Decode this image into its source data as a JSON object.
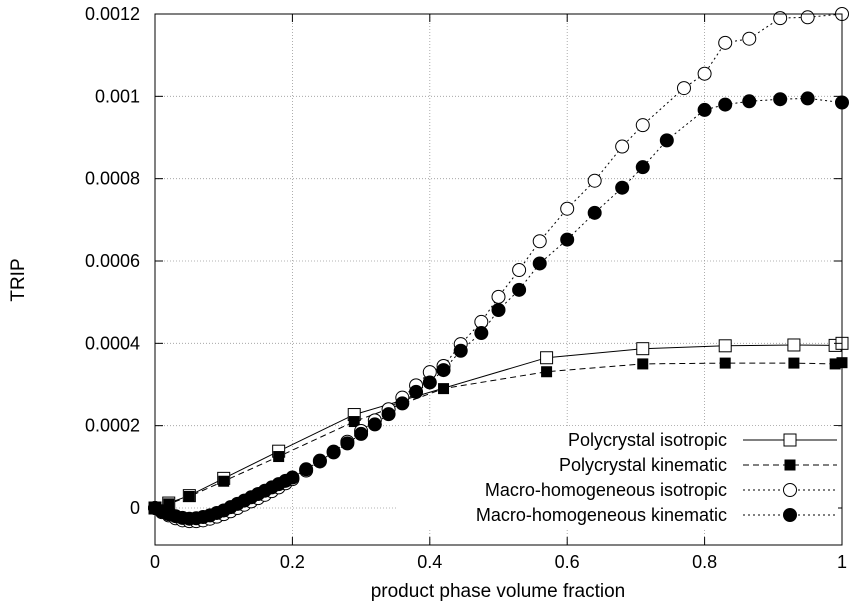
{
  "chart_data": {
    "type": "line",
    "title": "",
    "xlabel": "product phase volume fraction",
    "ylabel": "TRIP",
    "xlim": [
      0,
      1
    ],
    "ylim": [
      -6e-05,
      0.0012
    ],
    "xticks": [
      0,
      0.2,
      0.4,
      0.6,
      0.8,
      1
    ],
    "xtick_labels": [
      "0",
      "0.2",
      "0.4",
      "0.6",
      "0.8",
      "1"
    ],
    "yticks": [
      0,
      0.0002,
      0.0004,
      0.0006,
      0.0008,
      0.001,
      0.0012
    ],
    "ytick_labels": [
      "0",
      "0.0002",
      "0.0004",
      "0.0006",
      "0.0008",
      "0.001",
      "0.0012"
    ],
    "grid": true,
    "legend_position": "bottom-right",
    "series": [
      {
        "name": "Polycrystal isotropic",
        "line_style": "solid",
        "marker": "open-square",
        "x": [
          0,
          0.02,
          0.05,
          0.1,
          0.18,
          0.29,
          0.57,
          0.71,
          0.83,
          0.93,
          0.99,
          1.0
        ],
        "y": [
          0.0,
          1.2e-05,
          3e-05,
          7.2e-05,
          0.000138,
          0.000227,
          0.000365,
          0.000387,
          0.000394,
          0.000396,
          0.000395,
          0.0004
        ]
      },
      {
        "name": "Polycrystal kinematic",
        "line_style": "dashed",
        "marker": "filled-square",
        "x": [
          0,
          0.02,
          0.05,
          0.1,
          0.18,
          0.29,
          0.42,
          0.57,
          0.71,
          0.83,
          0.93,
          0.99,
          1.0
        ],
        "y": [
          0.0,
          1e-05,
          2.8e-05,
          6.5e-05,
          0.000125,
          0.00021,
          0.00029,
          0.000331,
          0.00035,
          0.000352,
          0.000352,
          0.00035,
          0.000353
        ]
      },
      {
        "name": "Macro-homogeneous isotropic",
        "line_style": "dotted",
        "marker": "open-circle",
        "x": [
          0,
          0.01,
          0.02,
          0.03,
          0.04,
          0.05,
          0.06,
          0.07,
          0.08,
          0.09,
          0.1,
          0.11,
          0.12,
          0.13,
          0.14,
          0.15,
          0.16,
          0.17,
          0.18,
          0.19,
          0.2,
          0.22,
          0.24,
          0.26,
          0.28,
          0.3,
          0.32,
          0.34,
          0.36,
          0.38,
          0.4,
          0.42,
          0.445,
          0.475,
          0.5,
          0.53,
          0.56,
          0.6,
          0.64,
          0.68,
          0.71,
          0.77,
          0.8,
          0.83,
          0.865,
          0.91,
          0.95,
          1.0
        ],
        "y": [
          0.0,
          -1e-05,
          -1.8e-05,
          -2.5e-05,
          -3e-05,
          -3.2e-05,
          -3.2e-05,
          -3e-05,
          -2.6e-05,
          -2.1e-05,
          -1.5e-05,
          -8e-06,
          0.0,
          8e-06,
          1.6e-05,
          2.4e-05,
          3.2e-05,
          4.1e-05,
          5e-05,
          6e-05,
          7e-05,
          9.1e-05,
          0.000113,
          0.000137,
          0.000161,
          0.000187,
          0.000213,
          0.00024,
          0.000268,
          0.000298,
          0.00033,
          0.000345,
          0.000398,
          0.000452,
          0.000513,
          0.000578,
          0.000648,
          0.000727,
          0.000795,
          0.000878,
          0.00093,
          0.00102,
          0.001055,
          0.00113,
          0.00114,
          0.00119,
          0.001192,
          0.0012
        ]
      },
      {
        "name": "Macro-homogeneous kinematic",
        "line_style": "dotted",
        "marker": "filled-circle",
        "x": [
          0,
          0.01,
          0.02,
          0.03,
          0.04,
          0.05,
          0.06,
          0.07,
          0.08,
          0.09,
          0.1,
          0.11,
          0.12,
          0.13,
          0.14,
          0.15,
          0.16,
          0.17,
          0.18,
          0.19,
          0.2,
          0.22,
          0.24,
          0.26,
          0.28,
          0.3,
          0.32,
          0.34,
          0.36,
          0.38,
          0.4,
          0.42,
          0.445,
          0.475,
          0.5,
          0.53,
          0.56,
          0.6,
          0.64,
          0.68,
          0.71,
          0.745,
          0.8,
          0.83,
          0.865,
          0.91,
          0.95,
          1.0
        ],
        "y": [
          0.0,
          -8e-06,
          -1.5e-05,
          -2e-05,
          -2.4e-05,
          -2.6e-05,
          -2.5e-05,
          -2.2e-05,
          -1.8e-05,
          -1.2e-05,
          -6e-06,
          2e-06,
          1e-05,
          1.8e-05,
          2.6e-05,
          3.4e-05,
          4.2e-05,
          5e-05,
          5.8e-05,
          6.6e-05,
          7.4e-05,
          9.4e-05,
          0.000115,
          0.000135,
          0.000157,
          0.00018,
          0.000203,
          0.000228,
          0.000254,
          0.000282,
          0.000305,
          0.000335,
          0.000382,
          0.000425,
          0.000481,
          0.00053,
          0.000594,
          0.000652,
          0.000717,
          0.000778,
          0.000828,
          0.000893,
          0.000967,
          0.00098,
          0.000988,
          0.000993,
          0.000995,
          0.000985
        ]
      }
    ]
  }
}
